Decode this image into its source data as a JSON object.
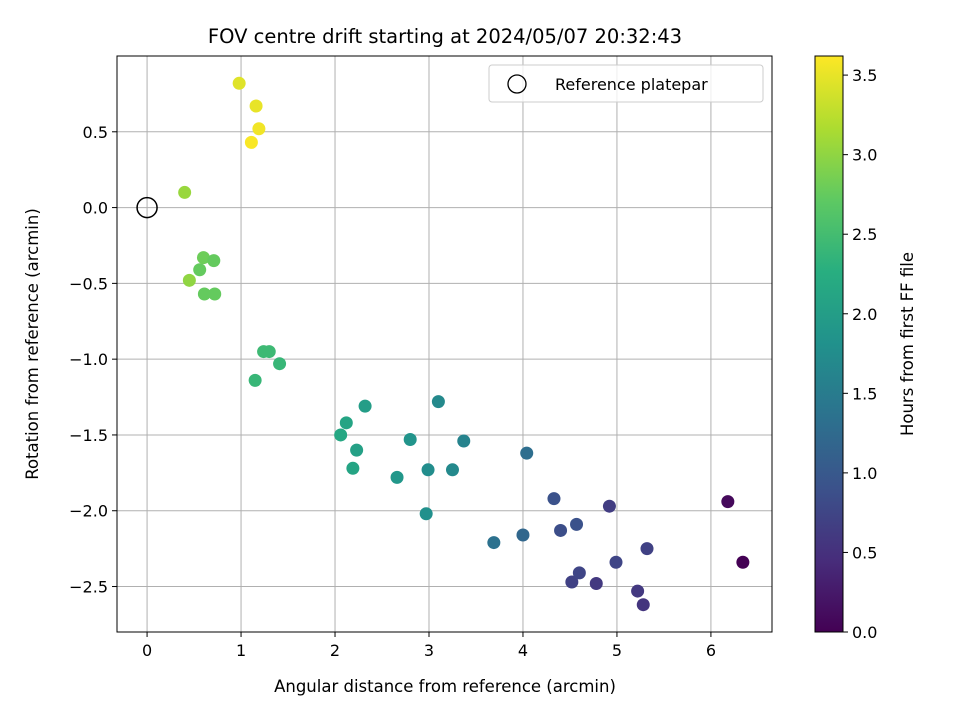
{
  "chart_data": {
    "type": "scatter",
    "title": "FOV centre drift starting at 2024/05/07 20:32:43",
    "xlabel": "Angular distance from reference (arcmin)",
    "ylabel": "Rotation from reference (arcmin)",
    "xlim": [
      -0.32,
      6.65
    ],
    "ylim": [
      -2.8,
      1.0
    ],
    "xticks": [
      0,
      1,
      2,
      3,
      4,
      5,
      6
    ],
    "xtick_labels": [
      "0",
      "1",
      "2",
      "3",
      "4",
      "5",
      "6"
    ],
    "yticks": [
      0.5,
      0.0,
      -0.5,
      -1.0,
      -1.5,
      -2.0,
      -2.5
    ],
    "ytick_labels": [
      "0.5",
      "0.0",
      "−0.5",
      "−1.0",
      "−1.5",
      "−2.0",
      "−2.5"
    ],
    "grid": true,
    "legend": {
      "position": "top-right",
      "entries": [
        {
          "label": "Reference platepar",
          "marker": "open-circle"
        }
      ]
    },
    "reference_point": {
      "x": 0.0,
      "y": 0.0
    },
    "colorbar": {
      "label": "Hours from first FF file",
      "colormap": "viridis",
      "range": [
        0.0,
        3.62
      ],
      "ticks": [
        0.0,
        0.5,
        1.0,
        1.5,
        2.0,
        2.5,
        3.0,
        3.5
      ],
      "tick_labels": [
        "0.0",
        "0.5",
        "1.0",
        "1.5",
        "2.0",
        "2.5",
        "3.0",
        "3.5"
      ]
    },
    "points": [
      {
        "x": 6.34,
        "y": -2.34,
        "hours": 0.0
      },
      {
        "x": 6.18,
        "y": -1.94,
        "hours": 0.08
      },
      {
        "x": 5.28,
        "y": -2.62,
        "hours": 0.55
      },
      {
        "x": 5.22,
        "y": -2.53,
        "hours": 0.6
      },
      {
        "x": 4.78,
        "y": -2.48,
        "hours": 0.6
      },
      {
        "x": 4.52,
        "y": -2.47,
        "hours": 0.7
      },
      {
        "x": 4.6,
        "y": -2.41,
        "hours": 0.75
      },
      {
        "x": 5.32,
        "y": -2.25,
        "hours": 0.7
      },
      {
        "x": 4.99,
        "y": -2.34,
        "hours": 0.75
      },
      {
        "x": 4.92,
        "y": -1.97,
        "hours": 0.65
      },
      {
        "x": 4.57,
        "y": -2.09,
        "hours": 0.9
      },
      {
        "x": 4.4,
        "y": -2.13,
        "hours": 0.85
      },
      {
        "x": 4.33,
        "y": -1.92,
        "hours": 0.9
      },
      {
        "x": 4.0,
        "y": -2.16,
        "hours": 1.2
      },
      {
        "x": 3.69,
        "y": -2.21,
        "hours": 1.35
      },
      {
        "x": 4.04,
        "y": -1.62,
        "hours": 1.3
      },
      {
        "x": 3.37,
        "y": -1.54,
        "hours": 1.6
      },
      {
        "x": 3.1,
        "y": -1.28,
        "hours": 1.7
      },
      {
        "x": 3.25,
        "y": -1.73,
        "hours": 1.7
      },
      {
        "x": 2.99,
        "y": -1.73,
        "hours": 1.75
      },
      {
        "x": 2.97,
        "y": -2.02,
        "hours": 1.8
      },
      {
        "x": 2.8,
        "y": -1.53,
        "hours": 1.85
      },
      {
        "x": 2.66,
        "y": -1.78,
        "hours": 1.9
      },
      {
        "x": 2.32,
        "y": -1.31,
        "hours": 2.0
      },
      {
        "x": 2.23,
        "y": -1.6,
        "hours": 2.05
      },
      {
        "x": 2.19,
        "y": -1.72,
        "hours": 2.1
      },
      {
        "x": 2.12,
        "y": -1.42,
        "hours": 2.1
      },
      {
        "x": 2.06,
        "y": -1.5,
        "hours": 2.15
      },
      {
        "x": 1.41,
        "y": -1.03,
        "hours": 2.4
      },
      {
        "x": 1.24,
        "y": -0.95,
        "hours": 2.45
      },
      {
        "x": 1.3,
        "y": -0.95,
        "hours": 2.45
      },
      {
        "x": 1.15,
        "y": -1.14,
        "hours": 2.4
      },
      {
        "x": 0.72,
        "y": -0.57,
        "hours": 2.75
      },
      {
        "x": 0.61,
        "y": -0.57,
        "hours": 2.75
      },
      {
        "x": 0.45,
        "y": -0.48,
        "hours": 3.0
      },
      {
        "x": 0.56,
        "y": -0.41,
        "hours": 2.75
      },
      {
        "x": 0.6,
        "y": -0.33,
        "hours": 2.8
      },
      {
        "x": 0.71,
        "y": -0.35,
        "hours": 2.75
      },
      {
        "x": 0.4,
        "y": 0.1,
        "hours": 3.05
      },
      {
        "x": 0.98,
        "y": 0.82,
        "hours": 3.45
      },
      {
        "x": 1.16,
        "y": 0.67,
        "hours": 3.5
      },
      {
        "x": 1.19,
        "y": 0.52,
        "hours": 3.55
      },
      {
        "x": 1.11,
        "y": 0.43,
        "hours": 3.6
      }
    ]
  }
}
